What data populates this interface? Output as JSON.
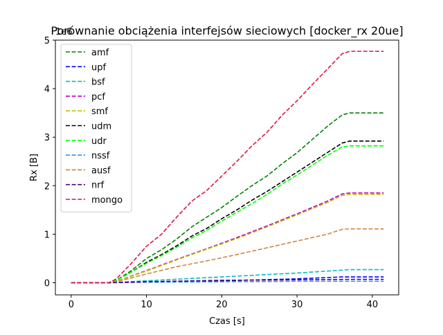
{
  "chart_data": {
    "type": "line",
    "title": "Porównanie obciążenia interfejsów sieciowych [docker_rx 20ue]",
    "xlabel": "Czas [s]",
    "ylabel": "Rx [B]",
    "y_offset_label": "1e6",
    "xlim": [
      -2.1,
      43.5
    ],
    "ylim": [
      -0.25,
      5.0
    ],
    "x_ticks": [
      0,
      10,
      20,
      30,
      40
    ],
    "y_ticks": [
      0,
      1,
      2,
      3,
      4,
      5
    ],
    "x_tick_labels": [
      "0",
      "10",
      "20",
      "30",
      "40"
    ],
    "y_tick_labels": [
      "0",
      "1",
      "2",
      "3",
      "4",
      "5"
    ],
    "grid": false,
    "legend_position": "upper-left",
    "line_style": "dashed",
    "series": [
      {
        "name": "amf",
        "color": "#008000",
        "x": [
          0,
          5,
          6,
          8,
          10,
          12,
          14,
          16,
          18,
          20,
          22,
          24,
          26,
          28,
          30,
          32,
          34,
          36,
          37,
          41.5
        ],
        "values": [
          0.0,
          0.0,
          0.05,
          0.25,
          0.5,
          0.68,
          0.9,
          1.15,
          1.35,
          1.55,
          1.78,
          2.0,
          2.2,
          2.45,
          2.68,
          2.95,
          3.22,
          3.46,
          3.5,
          3.5
        ]
      },
      {
        "name": "upf",
        "color": "#0000ff",
        "x": [
          0,
          5,
          10,
          20,
          30,
          36,
          37,
          41.5
        ],
        "values": [
          0.0,
          0.0,
          0.02,
          0.04,
          0.08,
          0.12,
          0.12,
          0.12
        ]
      },
      {
        "name": "bsf",
        "color": "#00bfbf",
        "x": [
          0,
          5,
          10,
          20,
          30,
          36,
          37,
          41.5
        ],
        "values": [
          0.0,
          0.0,
          0.04,
          0.12,
          0.2,
          0.26,
          0.27,
          0.27
        ]
      },
      {
        "name": "pcf",
        "color": "#bf00bf",
        "x": [
          0,
          5,
          6,
          10,
          14,
          18,
          22,
          26,
          30,
          34,
          36,
          37,
          41.5
        ],
        "values": [
          0.0,
          0.0,
          0.03,
          0.25,
          0.48,
          0.7,
          0.93,
          1.17,
          1.42,
          1.68,
          1.83,
          1.85,
          1.85
        ]
      },
      {
        "name": "smf",
        "color": "#bfbf00",
        "x": [
          0,
          5,
          6,
          10,
          14,
          18,
          22,
          26,
          30,
          34,
          36,
          37,
          41.5
        ],
        "values": [
          0.0,
          0.0,
          0.03,
          0.24,
          0.47,
          0.69,
          0.91,
          1.15,
          1.4,
          1.65,
          1.8,
          1.82,
          1.82
        ]
      },
      {
        "name": "udm",
        "color": "#000000",
        "x": [
          0,
          5,
          6,
          8,
          10,
          12,
          14,
          16,
          18,
          20,
          22,
          24,
          26,
          28,
          30,
          32,
          34,
          36,
          37,
          41.5
        ],
        "values": [
          0.0,
          0.0,
          0.05,
          0.22,
          0.42,
          0.58,
          0.76,
          0.96,
          1.12,
          1.32,
          1.5,
          1.7,
          1.88,
          2.08,
          2.28,
          2.48,
          2.68,
          2.88,
          2.92,
          2.92
        ]
      },
      {
        "name": "udr",
        "color": "#00ff00",
        "x": [
          0,
          5,
          6,
          8,
          10,
          12,
          14,
          16,
          18,
          20,
          22,
          24,
          26,
          28,
          30,
          32,
          34,
          36,
          37,
          41.5
        ],
        "values": [
          0.0,
          0.0,
          0.05,
          0.22,
          0.4,
          0.56,
          0.73,
          0.92,
          1.08,
          1.27,
          1.45,
          1.63,
          1.82,
          2.03,
          2.22,
          2.42,
          2.62,
          2.8,
          2.82,
          2.82
        ]
      },
      {
        "name": "nssf",
        "color": "#1e90ff",
        "x": [
          0,
          5,
          10,
          20,
          30,
          37,
          41.5
        ],
        "values": [
          0.0,
          0.0,
          0.01,
          0.02,
          0.03,
          0.03,
          0.03
        ]
      },
      {
        "name": "ausf",
        "color": "#cd853f",
        "x": [
          0,
          5,
          6,
          10,
          14,
          18,
          22,
          26,
          30,
          34,
          36,
          37,
          41.5
        ],
        "values": [
          0.0,
          0.0,
          0.02,
          0.18,
          0.33,
          0.45,
          0.58,
          0.72,
          0.86,
          1.0,
          1.1,
          1.11,
          1.11
        ]
      },
      {
        "name": "nrf",
        "color": "#4b0082",
        "x": [
          0,
          5,
          10,
          20,
          30,
          37,
          41.5
        ],
        "values": [
          0.0,
          0.0,
          0.02,
          0.05,
          0.06,
          0.07,
          0.07
        ]
      },
      {
        "name": "mongo",
        "color": "#dc143c",
        "x": [
          0,
          5,
          6,
          8,
          10,
          12,
          14,
          16,
          18,
          20,
          22,
          24,
          26,
          28,
          30,
          32,
          34,
          36,
          37,
          41.5
        ],
        "values": [
          0.0,
          0.0,
          0.08,
          0.4,
          0.75,
          1.0,
          1.35,
          1.68,
          1.9,
          2.2,
          2.5,
          2.82,
          3.1,
          3.45,
          3.75,
          4.08,
          4.4,
          4.72,
          4.77,
          4.77
        ]
      }
    ]
  }
}
